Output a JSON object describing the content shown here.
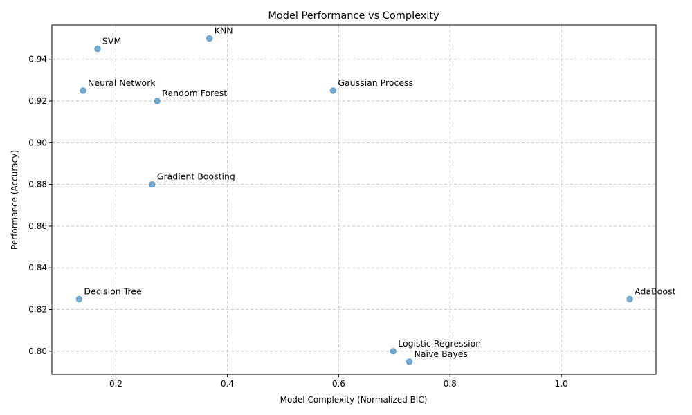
{
  "chart_data": {
    "type": "scatter",
    "title": "Model Performance vs Complexity",
    "xlabel": "Model Complexity (Normalized BIC)",
    "ylabel": "Performance (Accuracy)",
    "xlim": [
      0.085,
      1.17
    ],
    "ylim": [
      0.789,
      0.9565
    ],
    "xticks": [
      0.2,
      0.4,
      0.6,
      0.8,
      1.0
    ],
    "xtick_labels": [
      "0.2",
      "0.4",
      "0.6",
      "0.8",
      "1.0"
    ],
    "yticks": [
      0.8,
      0.82,
      0.84,
      0.86,
      0.88,
      0.9,
      0.92,
      0.94
    ],
    "ytick_labels": [
      "0.80",
      "0.82",
      "0.84",
      "0.86",
      "0.88",
      "0.90",
      "0.92",
      "0.94"
    ],
    "grid": true,
    "point_color": "#1f77b4",
    "points": [
      {
        "label": "KNN",
        "x": 0.368,
        "y": 0.95
      },
      {
        "label": "SVM",
        "x": 0.167,
        "y": 0.945
      },
      {
        "label": "Neural Network",
        "x": 0.141,
        "y": 0.925
      },
      {
        "label": "Random Forest",
        "x": 0.274,
        "y": 0.92
      },
      {
        "label": "Gaussian Process",
        "x": 0.59,
        "y": 0.925
      },
      {
        "label": "Gradient Boosting",
        "x": 0.265,
        "y": 0.88
      },
      {
        "label": "Decision Tree",
        "x": 0.134,
        "y": 0.825
      },
      {
        "label": "AdaBoost",
        "x": 1.123,
        "y": 0.825
      },
      {
        "label": "Logistic Regression",
        "x": 0.698,
        "y": 0.8
      },
      {
        "label": "Naive Bayes",
        "x": 0.727,
        "y": 0.795
      }
    ]
  }
}
